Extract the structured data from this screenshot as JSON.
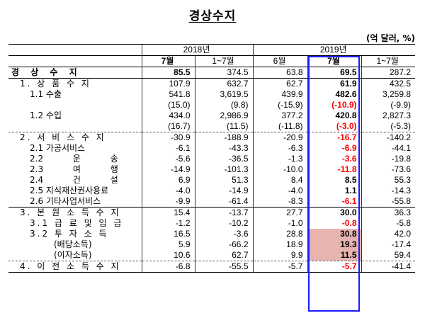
{
  "title": "경상수지",
  "unit": "(억 달러, %)",
  "header": {
    "year1": "2018년",
    "year2": "2019년",
    "cols": [
      "7월",
      "1~7월",
      "6월",
      "7월",
      "1~7월"
    ]
  },
  "rows": [
    {
      "label": "경 상 수 지",
      "values": [
        "85.5",
        "374.5",
        "63.8",
        "69.5",
        "287.2"
      ]
    },
    {
      "label": "1. 상 품 수 지",
      "values": [
        "107.9",
        "632.7",
        "62.7",
        "61.9",
        "432.5"
      ]
    },
    {
      "label": "1.1 수출",
      "values": [
        "541.8",
        "3,619.5",
        "439.9",
        "482.6",
        "3,259.8"
      ]
    },
    {
      "label": "",
      "values": [
        "(15.0)",
        "(9.8)",
        "(-15.9)",
        "(-10.9)",
        "(-9.9)"
      ]
    },
    {
      "label": "1.2 수입",
      "values": [
        "434.0",
        "2,986.9",
        "377.2",
        "420.8",
        "2,827.3"
      ]
    },
    {
      "label": "",
      "values": [
        "(16.7)",
        "(11.5)",
        "(-11.8)",
        "(-3.0)",
        "(-5.3)"
      ]
    },
    {
      "label": "2. 서 비 스 수 지",
      "values": [
        "-30.9",
        "-188.9",
        "-20.9",
        "-16.7",
        "-140.2"
      ]
    },
    {
      "label": "2.1 가공서비스",
      "values": [
        "-6.1",
        "-43.3",
        "-6.3",
        "-6.9",
        "-44.1"
      ]
    },
    {
      "label": "2.2 운 송",
      "values": [
        "-5.6",
        "-36.5",
        "-1.3",
        "-3.6",
        "-19.8"
      ]
    },
    {
      "label": "2.3 여 행",
      "values": [
        "-14.9",
        "-101.3",
        "-10.0",
        "-11.8",
        "-73.6"
      ]
    },
    {
      "label": "2.4 건 설",
      "values": [
        "6.9",
        "51.3",
        "8.4",
        "8.5",
        "55.3"
      ]
    },
    {
      "label": "2.5 지식재산권사용료",
      "values": [
        "-4.0",
        "-14.9",
        "-4.0",
        "1.1",
        "-14.3"
      ]
    },
    {
      "label": "2.6 기타사업서비스",
      "values": [
        "-9.9",
        "-61.4",
        "-8.3",
        "-6.1",
        "-55.8"
      ]
    },
    {
      "label": "3. 본 원 소 득 수 지",
      "values": [
        "15.4",
        "-13.7",
        "27.7",
        "30.0",
        "36.3"
      ]
    },
    {
      "label": "3.1 급 료 및 임 금",
      "values": [
        "-1.2",
        "-10.2",
        "-1.0",
        "-0.8",
        "-5.8"
      ]
    },
    {
      "label": "3.2 투 자 소 득",
      "values": [
        "16.5",
        "-3.6",
        "28.8",
        "30.8",
        "42.0"
      ]
    },
    {
      "label": "(배당소득)",
      "values": [
        "5.9",
        "-66.2",
        "18.9",
        "19.3",
        "-17.4"
      ]
    },
    {
      "label": "(이자소득)",
      "values": [
        "10.6",
        "62.7",
        "9.9",
        "11.5",
        "59.4"
      ]
    },
    {
      "label": "4. 이 전 소 득 수 지",
      "values": [
        "-6.8",
        "-55.5",
        "-5.7",
        "-5.7",
        "-41.4"
      ]
    }
  ],
  "colors": {
    "negative_highlight": "#ff0000",
    "cell_highlight": "#e8b4b0",
    "focus_box": "#1a1aff"
  }
}
